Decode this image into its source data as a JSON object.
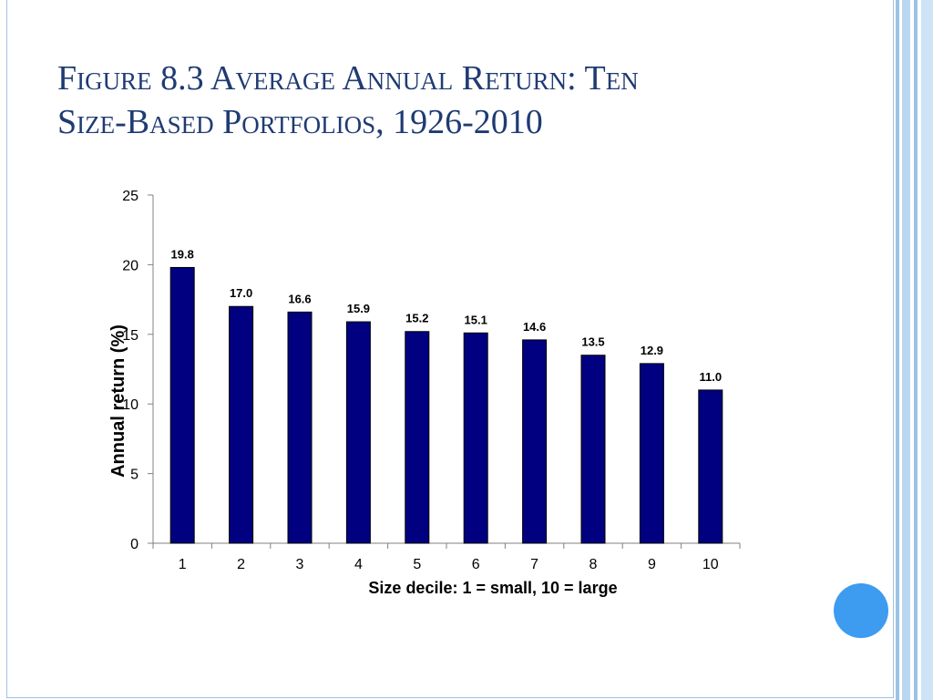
{
  "slide": {
    "title_line1": "Figure 8.3 Average Annual Return: Ten",
    "title_line2": "Size-Based Portfolios, 1926-2010"
  },
  "theme": {
    "title_color": "#1f3b73",
    "bar_color": "#000080",
    "accent_blue": "#3d9bf0",
    "stripe_blue": "#9cc3e6"
  },
  "chart_data": {
    "type": "bar",
    "categories": [
      "1",
      "2",
      "3",
      "4",
      "5",
      "6",
      "7",
      "8",
      "9",
      "10"
    ],
    "values": [
      19.8,
      17.0,
      16.6,
      15.9,
      15.2,
      15.1,
      14.6,
      13.5,
      12.9,
      11.0
    ],
    "data_labels": [
      "19.8",
      "17.0",
      "16.6",
      "15.9",
      "15.2",
      "15.1",
      "14.6",
      "13.5",
      "12.9",
      "11.0"
    ],
    "xlabel": "Size decile: 1 = small, 10 = large",
    "ylabel": "Annual return (%)",
    "ylim": [
      0,
      25
    ],
    "yticks": [
      0,
      5,
      10,
      15,
      20,
      25
    ],
    "grid": false,
    "legend": "none"
  }
}
